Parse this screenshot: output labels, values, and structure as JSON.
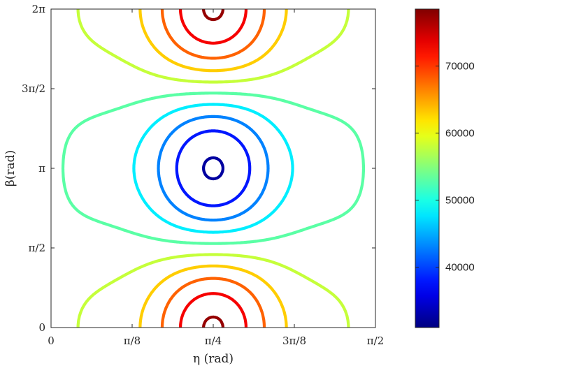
{
  "chart_data": {
    "type": "contour",
    "title": "",
    "xlabel": "η (rad)",
    "ylabel": "β(rad)",
    "xlim": [
      0,
      1.5708
    ],
    "ylim": [
      0,
      6.2832
    ],
    "xticks": [
      0,
      0.3927,
      0.7854,
      1.1781,
      1.5708
    ],
    "xtick_labels": [
      "0",
      "π/8",
      "π/4",
      "3π/8",
      "π/2"
    ],
    "yticks": [
      0,
      1.5708,
      3.1416,
      4.7124,
      6.2832
    ],
    "ytick_labels": [
      "0",
      "π/2",
      "π",
      "3π/2",
      "2π"
    ],
    "grid": false,
    "colormap": "jet",
    "colorbar": {
      "min": 31000,
      "max": 78500,
      "ticks": [
        40000,
        50000,
        60000,
        70000
      ],
      "tick_labels": [
        "40000",
        "50000",
        "60000",
        "70000"
      ]
    },
    "levels": [
      32500,
      38000,
      43000,
      48000,
      53000,
      58000,
      63000,
      68000,
      73000,
      77500
    ]
  }
}
